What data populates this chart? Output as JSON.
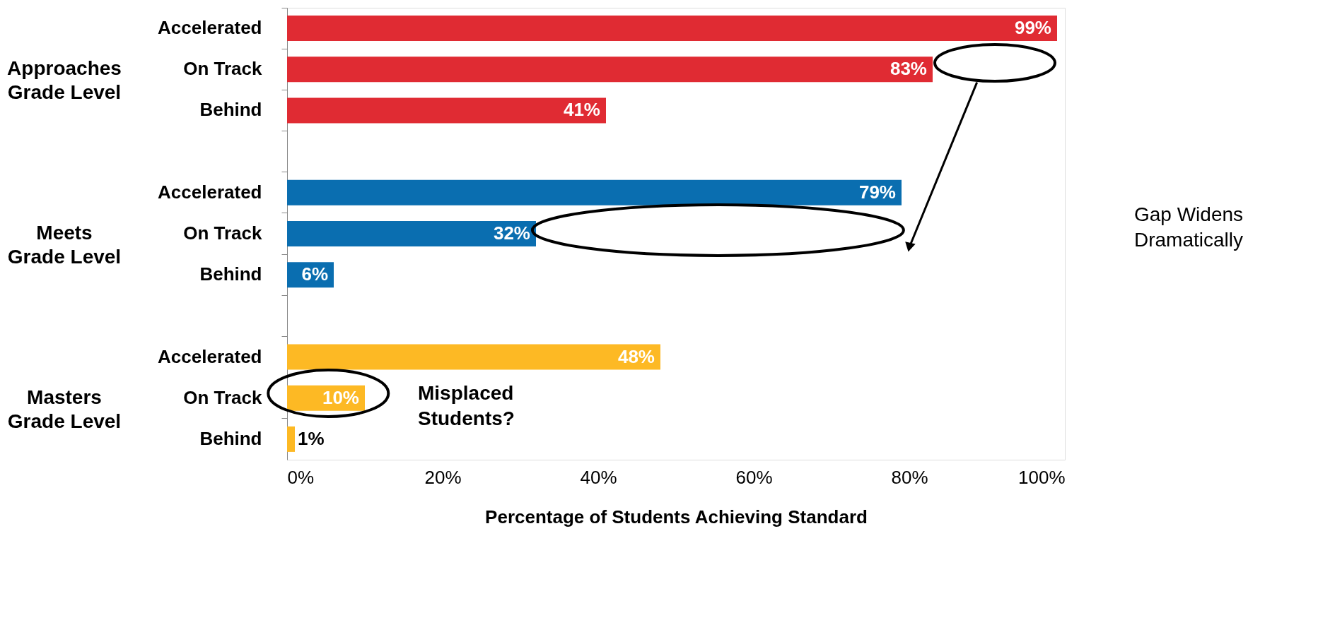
{
  "chart_data": {
    "type": "bar",
    "orientation": "horizontal",
    "categories": [
      "Accelerated",
      "On Track",
      "Behind",
      null,
      "Accelerated",
      "On Track",
      "Behind",
      null,
      "Accelerated",
      "On Track",
      "Behind"
    ],
    "values": [
      99,
      83,
      41,
      null,
      79,
      32,
      6,
      null,
      48,
      10,
      1
    ],
    "value_labels": [
      "99%",
      "83%",
      "41%",
      null,
      "79%",
      "32%",
      "6%",
      null,
      "48%",
      "10%",
      "1%"
    ],
    "colors": [
      "#e02b33",
      "#e02b33",
      "#e02b33",
      null,
      "#0a6eb0",
      "#0a6eb0",
      "#0a6eb0",
      null,
      "#fdb924",
      "#fdb924",
      "#fdb924"
    ],
    "xlabel": "Percentage of Students Achieving Standard",
    "xlim": [
      0,
      100
    ],
    "xticks": [
      {
        "value": 0,
        "label": "0%"
      },
      {
        "value": 20,
        "label": "20%"
      },
      {
        "value": 40,
        "label": "40%"
      },
      {
        "value": 60,
        "label": "60%"
      },
      {
        "value": 80,
        "label": "80%"
      },
      {
        "value": 100,
        "label": "100%"
      }
    ],
    "annotations": [
      "Approaches Grade Level",
      "Meets Grade Level",
      "Masters Grade Level",
      "Gap Widens Dramatically",
      "Misplaced Students?"
    ],
    "grid": false
  }
}
